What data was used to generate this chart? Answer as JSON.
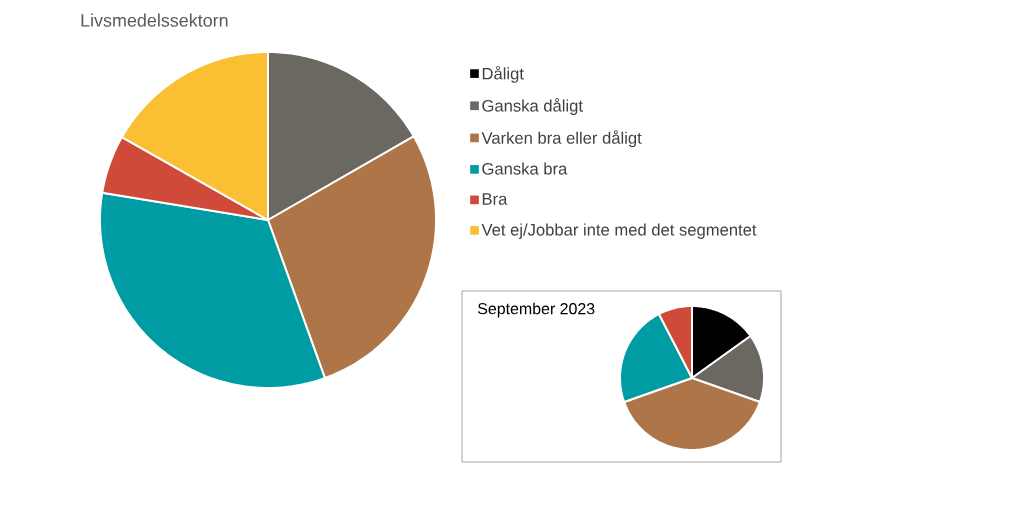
{
  "chart_data": [
    {
      "type": "pie",
      "title": "Livsmedelssektorn",
      "categories": [
        "Dåligt",
        "Ganska dåligt",
        "Varken bra eller dåligt",
        "Ganska bra",
        "Bra",
        "Vet ej/Jobbar inte med det segmentet"
      ],
      "values": [
        0,
        16.7,
        27.8,
        33.1,
        5.6,
        16.8
      ],
      "colors": [
        "#000000",
        "#6b6862",
        "#ae7548",
        "#009ca3",
        "#d04a3a",
        "#fbbf33"
      ],
      "legend": "right"
    },
    {
      "type": "pie",
      "title": "September 2023",
      "categories": [
        null,
        null,
        null,
        null,
        null
      ],
      "values": [
        15.1,
        15.3,
        39.2,
        22.8,
        7.6
      ],
      "colors": [
        "#000000",
        "#6b6862",
        "#ae7548",
        "#009ca3",
        "#d04a3a"
      ]
    }
  ]
}
